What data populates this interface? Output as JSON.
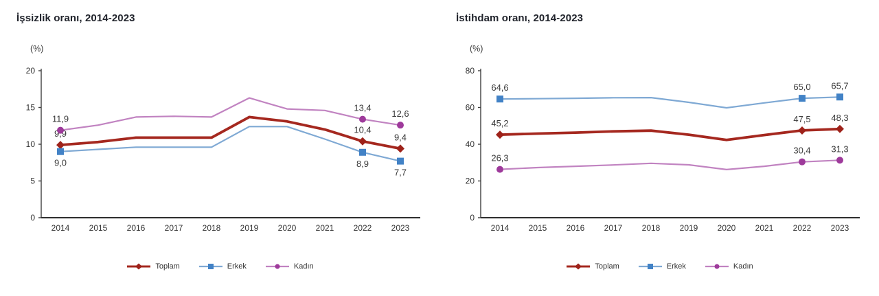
{
  "charts": [
    {
      "title": "İşsizlik oranı, 2014-2023",
      "unit_label": "(%)",
      "chart_data": {
        "type": "line",
        "x": [
          2014,
          2015,
          2016,
          2017,
          2018,
          2019,
          2020,
          2021,
          2022,
          2023
        ],
        "ylim": [
          0,
          20
        ],
        "yticks": [
          0,
          5,
          10,
          15,
          20
        ],
        "grid": false,
        "legend_position": "bottom",
        "series": [
          {
            "name": "Toplam",
            "color": "#a5281f",
            "marker": "diamond",
            "marker_color": "#9e221a",
            "line_width": 3.8,
            "values": [
              9.9,
              10.3,
              10.9,
              10.9,
              10.9,
              13.7,
              13.1,
              12.0,
              10.4,
              9.4
            ],
            "point_labels": [
              {
                "x": 2014,
                "text": "9,9",
                "pos": "above"
              },
              {
                "x": 2022,
                "text": "10,4",
                "pos": "above"
              },
              {
                "x": 2023,
                "text": "9,4",
                "pos": "above"
              }
            ]
          },
          {
            "name": "Erkek",
            "color": "#7fa9d4",
            "marker": "square",
            "marker_color": "#4282c6",
            "line_width": 2.2,
            "values": [
              9.0,
              9.3,
              9.6,
              9.6,
              9.6,
              12.4,
              12.4,
              10.7,
              8.9,
              7.7
            ],
            "point_labels": [
              {
                "x": 2014,
                "text": "9,0",
                "pos": "below"
              },
              {
                "x": 2022,
                "text": "8,9",
                "pos": "below"
              },
              {
                "x": 2023,
                "text": "7,7",
                "pos": "below"
              }
            ]
          },
          {
            "name": "Kadın",
            "color": "#c183c1",
            "marker": "circle",
            "marker_color": "#9e3a9b",
            "line_width": 2.2,
            "values": [
              11.9,
              12.6,
              13.7,
              13.8,
              13.7,
              16.3,
              14.8,
              14.6,
              13.4,
              12.6
            ],
            "point_labels": [
              {
                "x": 2014,
                "text": "11,9",
                "pos": "above"
              },
              {
                "x": 2022,
                "text": "13,4",
                "pos": "above"
              },
              {
                "x": 2023,
                "text": "12,6",
                "pos": "above"
              }
            ]
          }
        ]
      }
    },
    {
      "title": "İstihdam oranı, 2014-2023",
      "unit_label": "(%)",
      "chart_data": {
        "type": "line",
        "x": [
          2014,
          2015,
          2016,
          2017,
          2018,
          2019,
          2020,
          2021,
          2022,
          2023
        ],
        "ylim": [
          0,
          80
        ],
        "yticks": [
          0,
          20,
          40,
          60,
          80
        ],
        "grid": false,
        "legend_position": "bottom",
        "series": [
          {
            "name": "Toplam",
            "color": "#a5281f",
            "marker": "diamond",
            "marker_color": "#9e221a",
            "line_width": 3.8,
            "values": [
              45.2,
              45.8,
              46.3,
              47.0,
              47.4,
              45.2,
              42.3,
              45.0,
              47.5,
              48.3
            ],
            "point_labels": [
              {
                "x": 2014,
                "text": "45,2",
                "pos": "above"
              },
              {
                "x": 2022,
                "text": "47,5",
                "pos": "above"
              },
              {
                "x": 2023,
                "text": "48,3",
                "pos": "above"
              }
            ]
          },
          {
            "name": "Erkek",
            "color": "#7fa9d4",
            "marker": "square",
            "marker_color": "#4282c6",
            "line_width": 2.2,
            "values": [
              64.6,
              64.8,
              65.0,
              65.3,
              65.4,
              62.8,
              59.8,
              62.5,
              65.0,
              65.7
            ],
            "point_labels": [
              {
                "x": 2014,
                "text": "64,6",
                "pos": "above"
              },
              {
                "x": 2022,
                "text": "65,0",
                "pos": "above"
              },
              {
                "x": 2023,
                "text": "65,7",
                "pos": "above"
              }
            ]
          },
          {
            "name": "Kadın",
            "color": "#c183c1",
            "marker": "circle",
            "marker_color": "#9e3a9b",
            "line_width": 2.2,
            "values": [
              26.3,
              27.3,
              28.0,
              28.7,
              29.6,
              28.8,
              26.2,
              28.0,
              30.4,
              31.3
            ],
            "point_labels": [
              {
                "x": 2014,
                "text": "26,3",
                "pos": "above"
              },
              {
                "x": 2022,
                "text": "30,4",
                "pos": "above"
              },
              {
                "x": 2023,
                "text": "31,3",
                "pos": "above"
              }
            ]
          }
        ]
      }
    }
  ],
  "styles": {
    "axis_color": "#3f3f3f",
    "tick_label_color": "#333333",
    "data_label_color": "#3a3a3a",
    "title_color": "#21242c"
  }
}
